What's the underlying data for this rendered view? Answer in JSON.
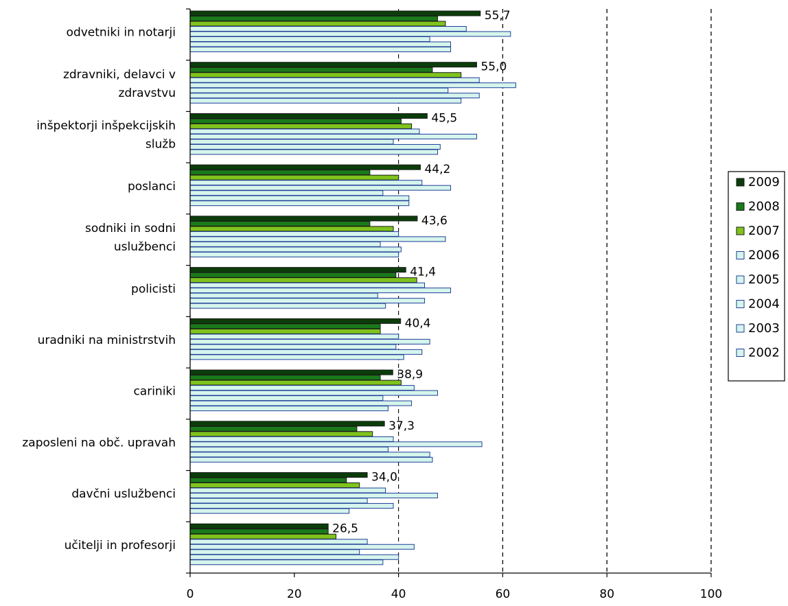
{
  "chart_data": {
    "type": "bar",
    "orientation": "horizontal",
    "title": "",
    "xlabel": "",
    "ylabel": "",
    "xlim": [
      0,
      100
    ],
    "xticks": [
      0,
      20,
      40,
      60,
      80,
      100
    ],
    "grid": "vertical dashed at 60, 80, 100",
    "legend_position": "right",
    "categories": [
      [
        "odvetniki in notarji"
      ],
      [
        "zdravniki, delavci v",
        "zdravstvu"
      ],
      [
        "inšpektorji inšpekcijskih",
        "služb"
      ],
      [
        "poslanci"
      ],
      [
        "sodniki in sodni",
        "uslužbenci"
      ],
      [
        "policisti"
      ],
      [
        "uradniki na ministrstvih"
      ],
      [
        "cariniki"
      ],
      [
        "zaposleni na obč. upravah"
      ],
      [
        "davčni uslužbenci"
      ],
      [
        "učitelji in profesorji"
      ]
    ],
    "series": [
      {
        "name": "2009",
        "color": "#0b3d0b",
        "values": [
          55.7,
          55.0,
          45.5,
          44.2,
          43.6,
          41.4,
          40.4,
          38.9,
          37.3,
          34.0,
          26.5
        ]
      },
      {
        "name": "2008",
        "color": "#1a7a1a",
        "values": [
          47.5,
          46.5,
          40.5,
          34.5,
          34.5,
          39.5,
          36.5,
          36.5,
          32.0,
          30.0,
          26.5
        ]
      },
      {
        "name": "2007",
        "color": "#7fc31c",
        "values": [
          49.0,
          52.0,
          42.5,
          40.0,
          39.0,
          43.5,
          36.5,
          40.5,
          35.0,
          32.5,
          28.0
        ]
      },
      {
        "name": "2006",
        "color": "#d6f5ec",
        "values": [
          53.0,
          55.5,
          44.0,
          44.5,
          40.0,
          45.0,
          40.0,
          43.0,
          39.0,
          37.5,
          34.0
        ]
      },
      {
        "name": "2005",
        "color": "#d6f5ec",
        "values": [
          61.5,
          62.5,
          55.0,
          50.0,
          49.0,
          50.0,
          46.0,
          47.5,
          56.0,
          47.5,
          43.0
        ]
      },
      {
        "name": "2004",
        "color": "#d6f5ec",
        "values": [
          46.0,
          49.5,
          39.0,
          37.0,
          36.5,
          36.0,
          39.5,
          37.0,
          38.0,
          34.0,
          32.5
        ]
      },
      {
        "name": "2003",
        "color": "#d6f5ec",
        "values": [
          50.0,
          55.5,
          48.0,
          42.0,
          40.5,
          45.0,
          44.5,
          42.5,
          46.0,
          39.0,
          40.0
        ]
      },
      {
        "name": "2002",
        "color": "#d6f5ec",
        "values": [
          50.0,
          52.0,
          47.5,
          42.0,
          40.0,
          37.5,
          41.0,
          38.0,
          46.5,
          30.5,
          37.0
        ]
      }
    ],
    "data_labels": [
      "55,7",
      "55,0",
      "45,5",
      "44,2",
      "43,6",
      "41,4",
      "40,4",
      "38,9",
      "37,3",
      "34,0",
      "26,5"
    ],
    "legend_order": [
      "2009",
      "2008",
      "2007",
      "2006",
      "2005",
      "2004",
      "2003",
      "2002"
    ]
  }
}
